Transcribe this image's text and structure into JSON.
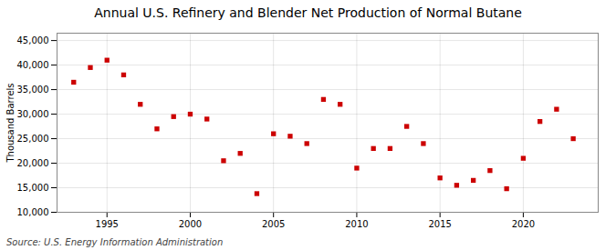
{
  "chart_data": {
    "type": "scatter",
    "title": "Annual U.S. Refinery and Blender Net Production of Normal Butane",
    "ylabel": "Thousand Barrels",
    "annotations": [
      "Source: U.S. Energy Information Administration"
    ],
    "x": [
      1993,
      1994,
      1995,
      1996,
      1997,
      1998,
      1999,
      2000,
      2001,
      2002,
      2003,
      2004,
      2005,
      2006,
      2007,
      2008,
      2009,
      2010,
      2011,
      2012,
      2013,
      2014,
      2015,
      2016,
      2017,
      2018,
      2019,
      2020,
      2021,
      2022,
      2023
    ],
    "values": [
      36500,
      39500,
      41000,
      38000,
      32000,
      27000,
      29500,
      30000,
      29000,
      20500,
      22000,
      13800,
      26000,
      25500,
      24000,
      33000,
      32000,
      19000,
      23000,
      23000,
      27500,
      24000,
      17000,
      15500,
      16500,
      18500,
      14800,
      21000,
      28500,
      31000,
      25000
    ],
    "color": "#cc0000",
    "marker": "square",
    "xlim": [
      1992.0,
      2024.5
    ],
    "xticks": [
      1995,
      2000,
      2005,
      2010,
      2015,
      2020
    ],
    "ylim": [
      10000,
      46500
    ],
    "yticks": [
      {
        "value": 10000,
        "label": "10,000"
      },
      {
        "value": 15000,
        "label": "15,000"
      },
      {
        "value": 20000,
        "label": "20,000"
      },
      {
        "value": 25000,
        "label": "25,000"
      },
      {
        "value": 30000,
        "label": "30,000"
      },
      {
        "value": 35000,
        "label": "35,000"
      },
      {
        "value": 40000,
        "label": "40,000"
      },
      {
        "value": 45000,
        "label": "45,000"
      }
    ],
    "grid": true
  }
}
